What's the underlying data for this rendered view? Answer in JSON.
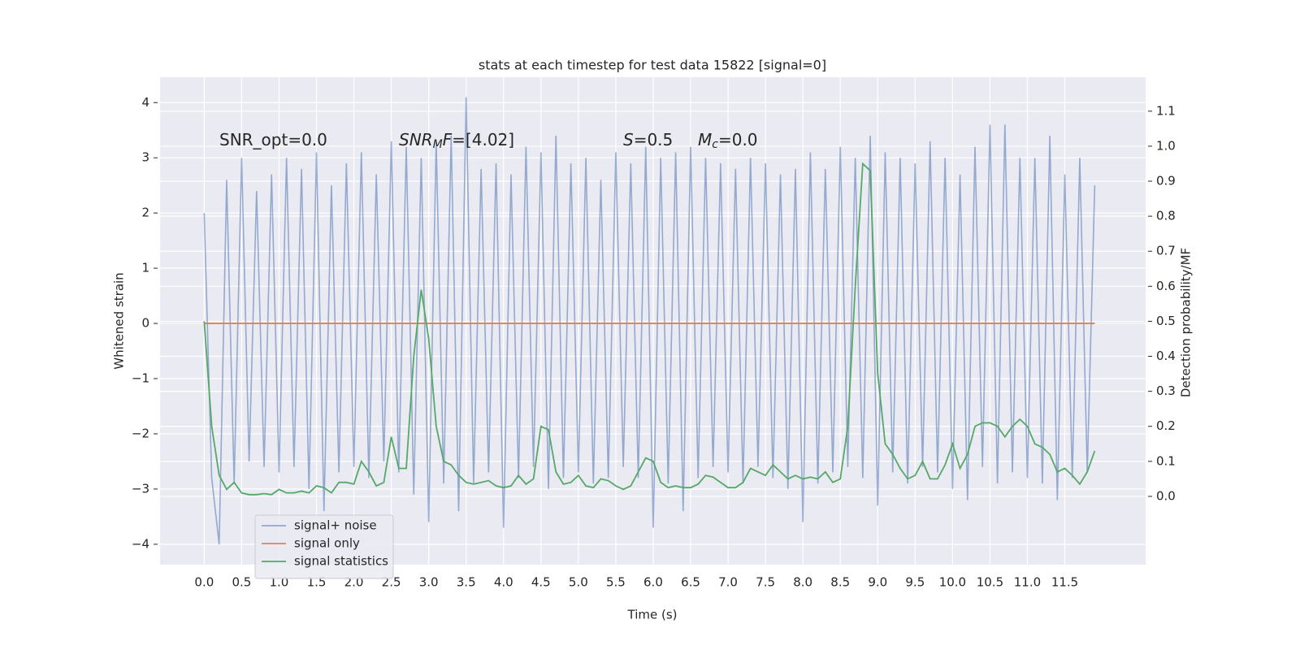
{
  "chart_data": {
    "type": "line",
    "title": "stats at each timestep for test data 15822 [signal=0]",
    "xlabel": "Time (s)",
    "ylabel": "Whitened strain",
    "y2label": "Detection probability/MF",
    "annotations": [
      [
        {
          "text": "SNR_opt=0.0"
        }
      ],
      [
        {
          "text": "SNR",
          "style": "italic"
        },
        {
          "text": "M",
          "style": "sub"
        },
        {
          "text": "F",
          "style": "italic"
        },
        {
          "text": "=[4.02]"
        }
      ],
      [
        {
          "text": "S",
          "style": "italic"
        },
        {
          "text": "=0.5"
        }
      ],
      [
        {
          "text": "M",
          "style": "italic"
        },
        {
          "text": "c",
          "style": "sub"
        },
        {
          "text": "=0.0"
        }
      ]
    ],
    "xlim": [
      -0.59,
      12.58
    ],
    "ylim": [
      -4.37,
      4.46
    ],
    "y2lim": [
      -0.195,
      1.197
    ],
    "xticks": [
      {
        "value": 0,
        "label": "0.0"
      },
      0.5,
      {
        "value": 1,
        "label": "1.0"
      },
      1.5,
      {
        "value": 2,
        "label": "2.0"
      },
      2.5,
      {
        "value": 3,
        "label": "3.0"
      },
      3.5,
      {
        "value": 4,
        "label": "4.0"
      },
      4.5,
      {
        "value": 5,
        "label": "5.0"
      },
      5.5,
      {
        "value": 6,
        "label": "6.0"
      },
      6.5,
      {
        "value": 7,
        "label": "7.0"
      },
      7.5,
      {
        "value": 8,
        "label": "8.0"
      },
      8.5,
      {
        "value": 9,
        "label": "9.0"
      },
      9.5,
      {
        "value": 10,
        "label": "10.0"
      },
      10.5,
      {
        "value": 11,
        "label": "11.0"
      },
      11.5
    ],
    "yticks": [
      {
        "value": -4,
        "label": "−4"
      },
      {
        "value": -3,
        "label": "−3"
      },
      {
        "value": -2,
        "label": "−2"
      },
      {
        "value": -1,
        "label": "−1"
      },
      0,
      1,
      2,
      3,
      4
    ],
    "y2ticks": [
      {
        "value": 0,
        "label": "0.0"
      },
      0.1,
      0.2,
      0.3,
      0.4,
      0.5,
      0.6,
      0.7,
      0.8,
      0.9,
      {
        "value": 1,
        "label": "1.0"
      },
      1.1
    ],
    "grid": true,
    "legend": "lower left",
    "x": [
      0,
      0.1,
      0.2,
      0.3,
      0.4,
      0.5,
      0.6,
      0.7,
      0.8,
      0.9,
      1,
      1.1,
      1.2,
      1.3,
      1.4,
      1.5,
      1.6,
      1.7,
      1.8,
      1.9,
      2,
      2.1,
      2.2,
      2.3,
      2.4,
      2.5,
      2.6,
      2.7,
      2.8,
      2.9,
      3,
      3.1,
      3.2,
      3.3,
      3.4,
      3.5,
      3.6,
      3.7,
      3.8,
      3.9,
      4,
      4.1,
      4.2,
      4.3,
      4.4,
      4.5,
      4.6,
      4.7,
      4.8,
      4.9,
      5,
      5.1,
      5.2,
      5.3,
      5.4,
      5.5,
      5.6,
      5.7,
      5.8,
      5.9,
      6,
      6.1,
      6.2,
      6.3,
      6.4,
      6.5,
      6.6,
      6.7,
      6.8,
      6.9,
      7,
      7.1,
      7.2,
      7.3,
      7.4,
      7.5,
      7.6,
      7.7,
      7.8,
      7.9,
      8,
      8.1,
      8.2,
      8.3,
      8.4,
      8.5,
      8.6,
      8.7,
      8.8,
      8.9,
      9,
      9.1,
      9.2,
      9.3,
      9.4,
      9.5,
      9.6,
      9.7,
      9.8,
      9.9,
      10,
      10.1,
      10.2,
      10.3,
      10.4,
      10.5,
      10.6,
      10.7,
      10.8,
      10.9,
      11,
      11.1,
      11.2,
      11.3,
      11.4,
      11.5,
      11.6,
      11.7,
      11.8,
      11.9
    ],
    "series": [
      {
        "name": "signal+ noise",
        "color": "#4c72b0",
        "values": [
          2.0,
          -2.8,
          -4.0,
          2.6,
          -2.9,
          3.0,
          -2.5,
          2.4,
          -2.6,
          2.7,
          -2.7,
          3.0,
          -2.6,
          2.8,
          -3.0,
          3.1,
          -3.4,
          2.5,
          -2.7,
          2.9,
          -2.6,
          3.1,
          -2.8,
          2.7,
          -2.5,
          3.3,
          -2.7,
          3.2,
          -3.1,
          3.0,
          -3.6,
          3.3,
          -2.9,
          3.4,
          -3.4,
          4.1,
          -2.9,
          2.8,
          -2.7,
          2.9,
          -3.7,
          2.7,
          -2.8,
          3.2,
          -2.6,
          3.1,
          -3.0,
          3.4,
          -2.8,
          2.9,
          -2.7,
          3.0,
          -2.9,
          2.6,
          -2.8,
          3.1,
          -2.6,
          2.9,
          -2.8,
          3.2,
          -3.7,
          3.0,
          -2.9,
          3.1,
          -3.4,
          3.2,
          -2.8,
          3.0,
          -2.6,
          2.9,
          -2.7,
          2.8,
          -2.9,
          3.0,
          -2.6,
          2.9,
          -2.8,
          2.7,
          -3.0,
          2.8,
          -3.6,
          3.1,
          -2.9,
          2.8,
          -2.7,
          3.2,
          -2.6,
          3.0,
          -2.8,
          3.4,
          -3.3,
          3.1,
          -2.7,
          3.0,
          -2.9,
          2.9,
          -2.6,
          3.3,
          -2.7,
          3.0,
          -3.0,
          2.7,
          -3.2,
          3.2,
          -2.6,
          3.6,
          -2.9,
          3.6,
          -2.7,
          3.0,
          -2.8,
          3.0,
          -2.9,
          3.4,
          -3.2,
          2.7,
          -2.8,
          3.0,
          -2.7,
          2.5
        ]
      },
      {
        "name": "signal only",
        "color": "#dd8452",
        "values": [
          0,
          0,
          0,
          0,
          0,
          0,
          0,
          0,
          0,
          0,
          0,
          0,
          0,
          0,
          0,
          0,
          0,
          0,
          0,
          0,
          0,
          0,
          0,
          0,
          0,
          0,
          0,
          0,
          0,
          0,
          0,
          0,
          0,
          0,
          0,
          0,
          0,
          0,
          0,
          0,
          0,
          0,
          0,
          0,
          0,
          0,
          0,
          0,
          0,
          0,
          0,
          0,
          0,
          0,
          0,
          0,
          0,
          0,
          0,
          0,
          0,
          0,
          0,
          0,
          0,
          0,
          0,
          0,
          0,
          0,
          0,
          0,
          0,
          0,
          0,
          0,
          0,
          0,
          0,
          0,
          0,
          0,
          0,
          0,
          0,
          0,
          0,
          0,
          0,
          0,
          0,
          0,
          0,
          0,
          0,
          0,
          0,
          0,
          0,
          0,
          0,
          0,
          0,
          0,
          0,
          0,
          0,
          0,
          0,
          0,
          0,
          0,
          0,
          0,
          0,
          0,
          0,
          0,
          0,
          0
        ]
      },
      {
        "name": "signal statistics",
        "color": "#55a868",
        "axis": "y2",
        "values": [
          0.5,
          0.2,
          0.06,
          0.02,
          0.04,
          0.01,
          0.005,
          0.005,
          0.008,
          0.005,
          0.02,
          0.01,
          0.01,
          0.015,
          0.01,
          0.03,
          0.025,
          0.01,
          0.04,
          0.04,
          0.035,
          0.1,
          0.07,
          0.03,
          0.04,
          0.17,
          0.08,
          0.08,
          0.4,
          0.59,
          0.45,
          0.2,
          0.1,
          0.09,
          0.06,
          0.04,
          0.035,
          0.04,
          0.045,
          0.03,
          0.025,
          0.03,
          0.06,
          0.035,
          0.05,
          0.2,
          0.19,
          0.07,
          0.035,
          0.04,
          0.06,
          0.03,
          0.025,
          0.05,
          0.045,
          0.03,
          0.02,
          0.03,
          0.07,
          0.11,
          0.1,
          0.04,
          0.025,
          0.03,
          0.025,
          0.025,
          0.035,
          0.06,
          0.055,
          0.04,
          0.025,
          0.025,
          0.04,
          0.08,
          0.07,
          0.06,
          0.09,
          0.07,
          0.05,
          0.06,
          0.05,
          0.055,
          0.05,
          0.07,
          0.04,
          0.05,
          0.2,
          0.6,
          0.95,
          0.93,
          0.35,
          0.15,
          0.12,
          0.08,
          0.05,
          0.06,
          0.1,
          0.05,
          0.05,
          0.09,
          0.15,
          0.08,
          0.12,
          0.2,
          0.21,
          0.21,
          0.2,
          0.17,
          0.2,
          0.22,
          0.2,
          0.15,
          0.14,
          0.12,
          0.07,
          0.08,
          0.06,
          0.035,
          0.07,
          0.13
        ]
      }
    ]
  }
}
